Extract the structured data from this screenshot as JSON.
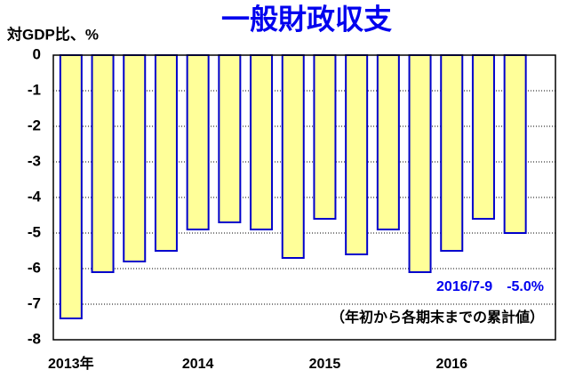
{
  "chart_data": {
    "type": "bar",
    "title": "一般財政収支",
    "y_label": "対GDP比、%",
    "annotations": [
      "2016/7-9　-5.0%",
      "（年初から各期末までの累計値）"
    ],
    "categories": [
      "2013年",
      null,
      null,
      null,
      "2014",
      null,
      null,
      null,
      "2015",
      null,
      null,
      null,
      "2016",
      null,
      null
    ],
    "values": [
      -7.4,
      -6.1,
      -5.8,
      -5.5,
      -4.9,
      -4.7,
      -4.9,
      -5.7,
      -4.6,
      -5.6,
      -4.9,
      -6.1,
      -5.5,
      -4.6,
      -5.0
    ],
    "color": "#ffff99",
    "edge_color": "#0000cc",
    "ylim": [
      -8,
      0
    ],
    "yticks": [
      0,
      -1,
      -2,
      -3,
      -4,
      -5,
      -6,
      -7,
      -8
    ],
    "grid": true
  }
}
